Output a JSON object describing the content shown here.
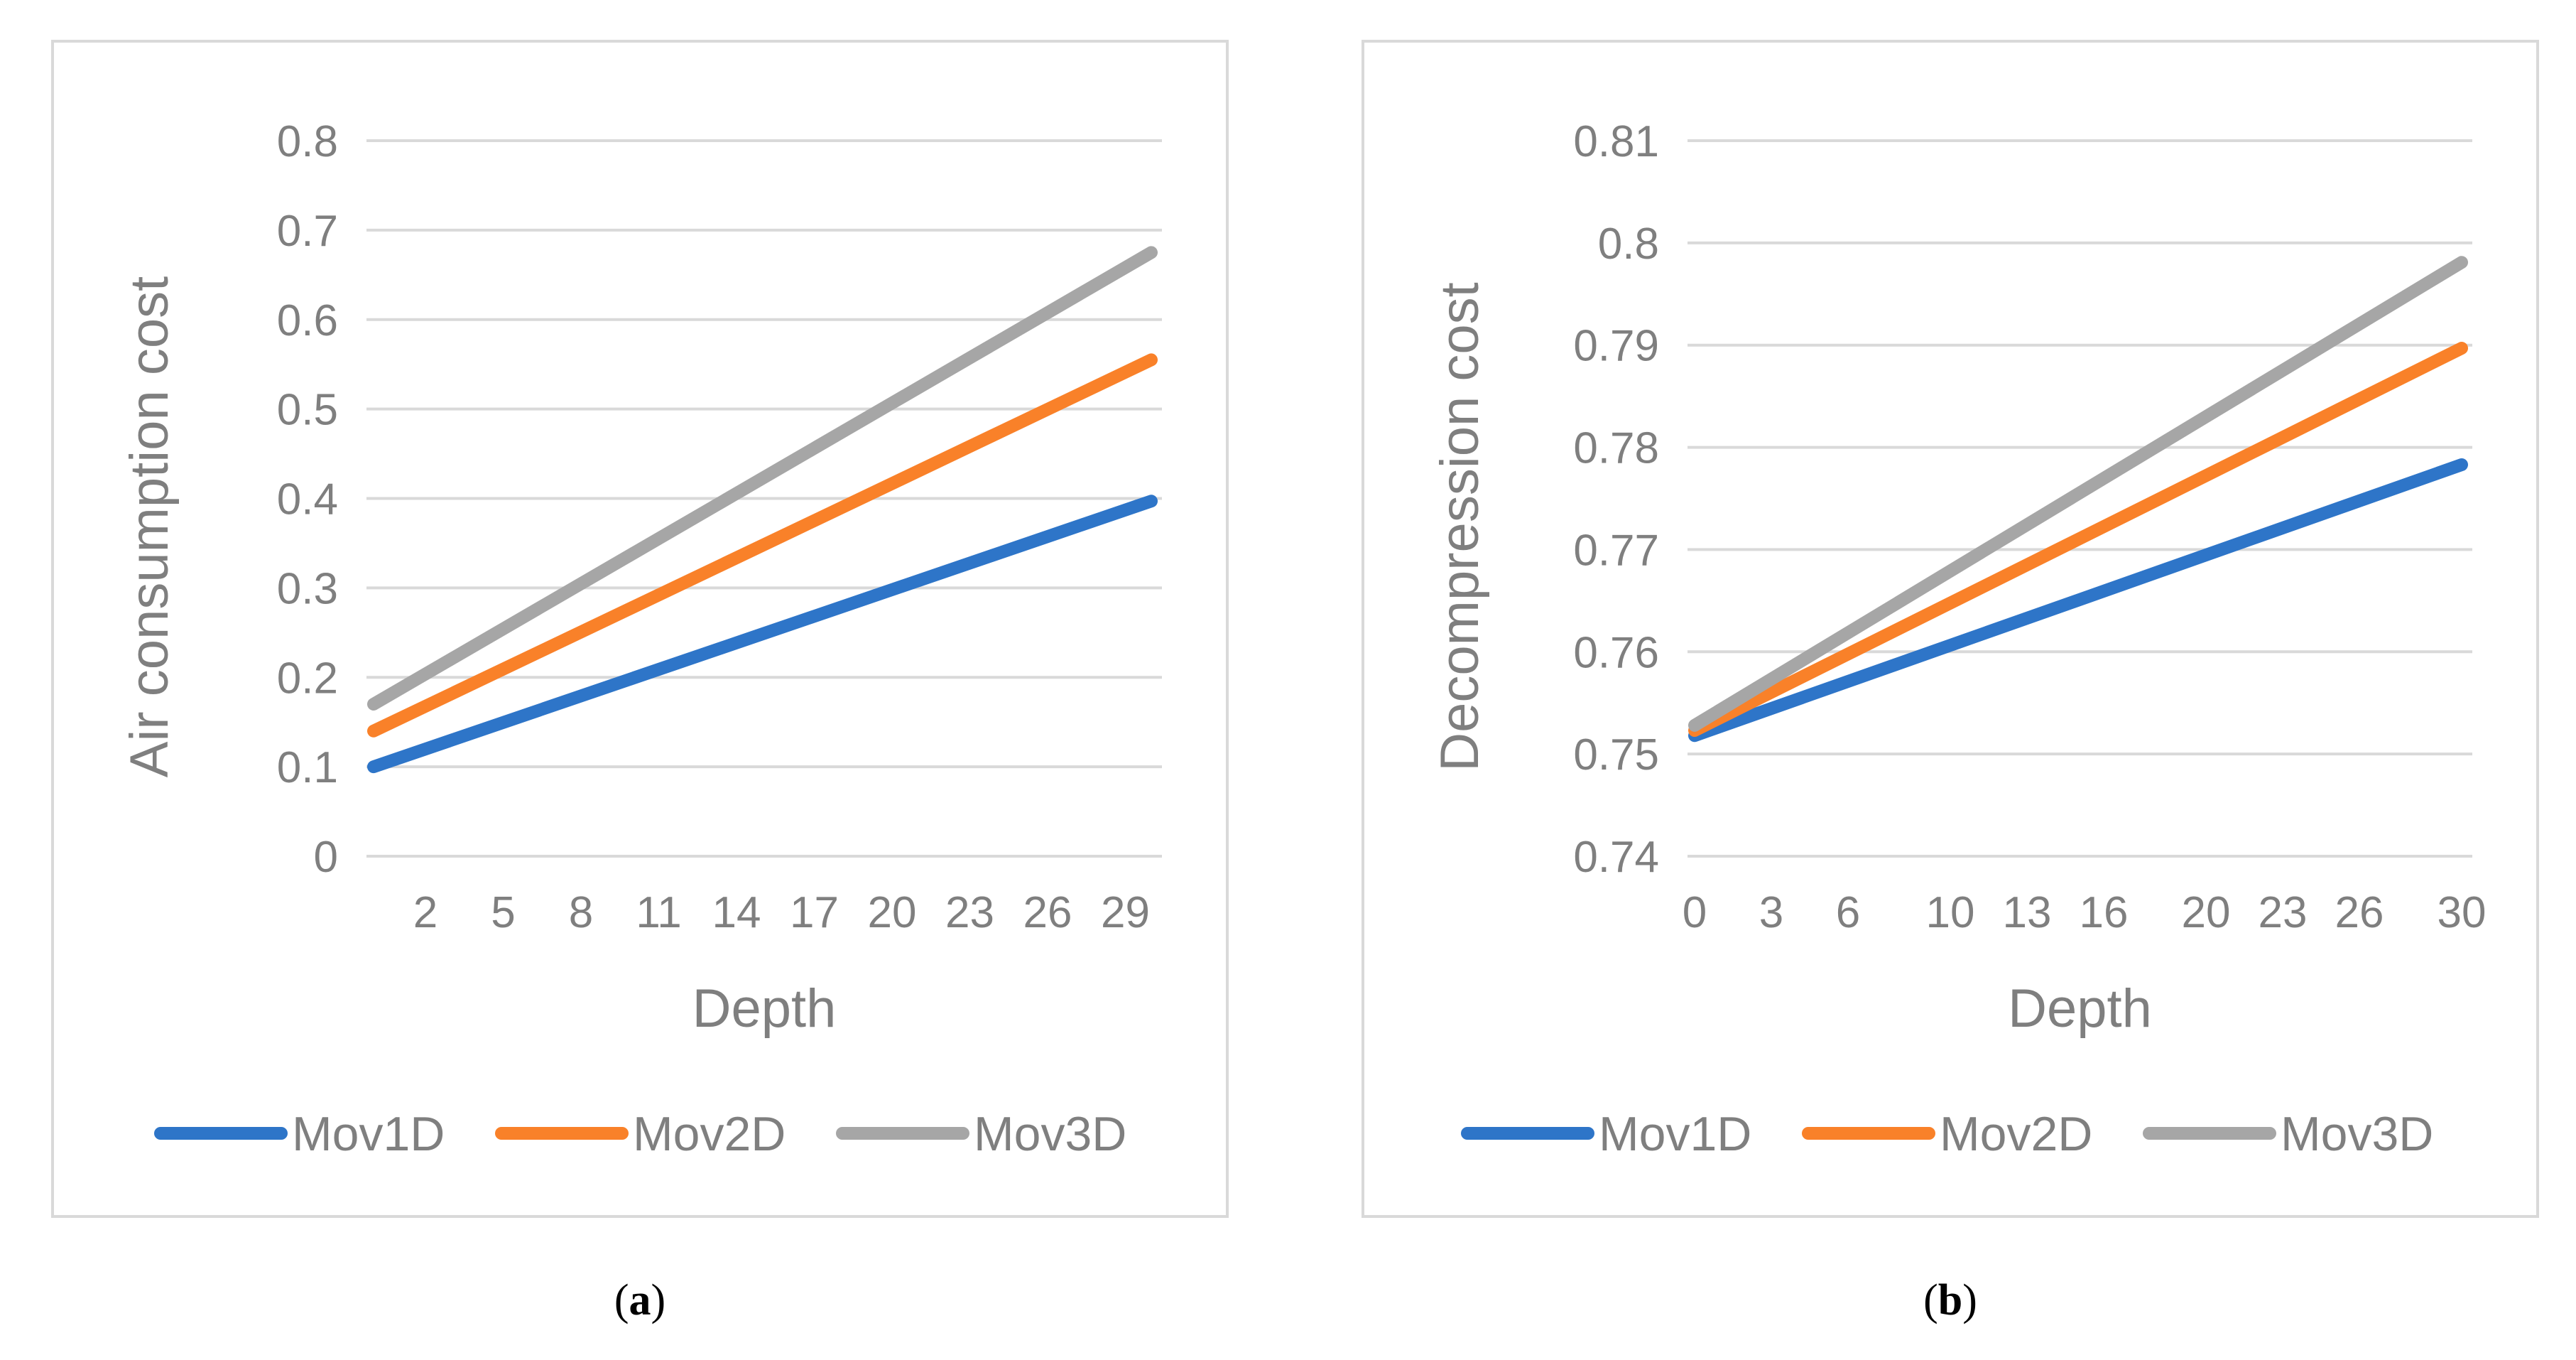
{
  "colors": {
    "Mov1D": "#2e75c8",
    "Mov2D": "#f98129",
    "Mov3D": "#a6a6a6",
    "grid": "#d9d9d9",
    "text": "#7f7f7f"
  },
  "chart_data": [
    {
      "type": "line",
      "panel": "a",
      "xlabel": "Depth",
      "ylabel": "Air consumption cost",
      "ylim": [
        0,
        0.8
      ],
      "yticks": [
        "0",
        "0.1",
        "0.2",
        "0.3",
        "0.4",
        "0.5",
        "0.6",
        "0.7",
        "0.8"
      ],
      "xlim": [
        0,
        30
      ],
      "xticks": [
        2,
        5,
        8,
        11,
        14,
        17,
        20,
        23,
        26,
        29
      ],
      "x": [
        0,
        30
      ],
      "series": [
        {
          "name": "Mov1D",
          "values": [
            0.1,
            0.397
          ]
        },
        {
          "name": "Mov2D",
          "values": [
            0.14,
            0.555
          ]
        },
        {
          "name": "Mov3D",
          "values": [
            0.17,
            0.675
          ]
        }
      ],
      "legend": "bottom"
    },
    {
      "type": "line",
      "panel": "b",
      "xlabel": "Depth",
      "ylabel": "Decompression cost",
      "ylim": [
        0.74,
        0.81
      ],
      "yticks": [
        "0.74",
        "0.75",
        "0.76",
        "0.77",
        "0.78",
        "0.79",
        "0.8",
        "0.81"
      ],
      "xlim": [
        0,
        30
      ],
      "xticks": [
        0,
        3,
        6,
        10,
        13,
        16,
        20,
        23,
        26,
        30
      ],
      "x": [
        0,
        30
      ],
      "series": [
        {
          "name": "Mov1D",
          "values": [
            0.7518,
            0.7783
          ]
        },
        {
          "name": "Mov2D",
          "values": [
            0.7523,
            0.7897
          ]
        },
        {
          "name": "Mov3D",
          "values": [
            0.7528,
            0.7981
          ]
        }
      ],
      "legend": "bottom"
    }
  ],
  "captions": {
    "a": "a",
    "b": "b"
  }
}
